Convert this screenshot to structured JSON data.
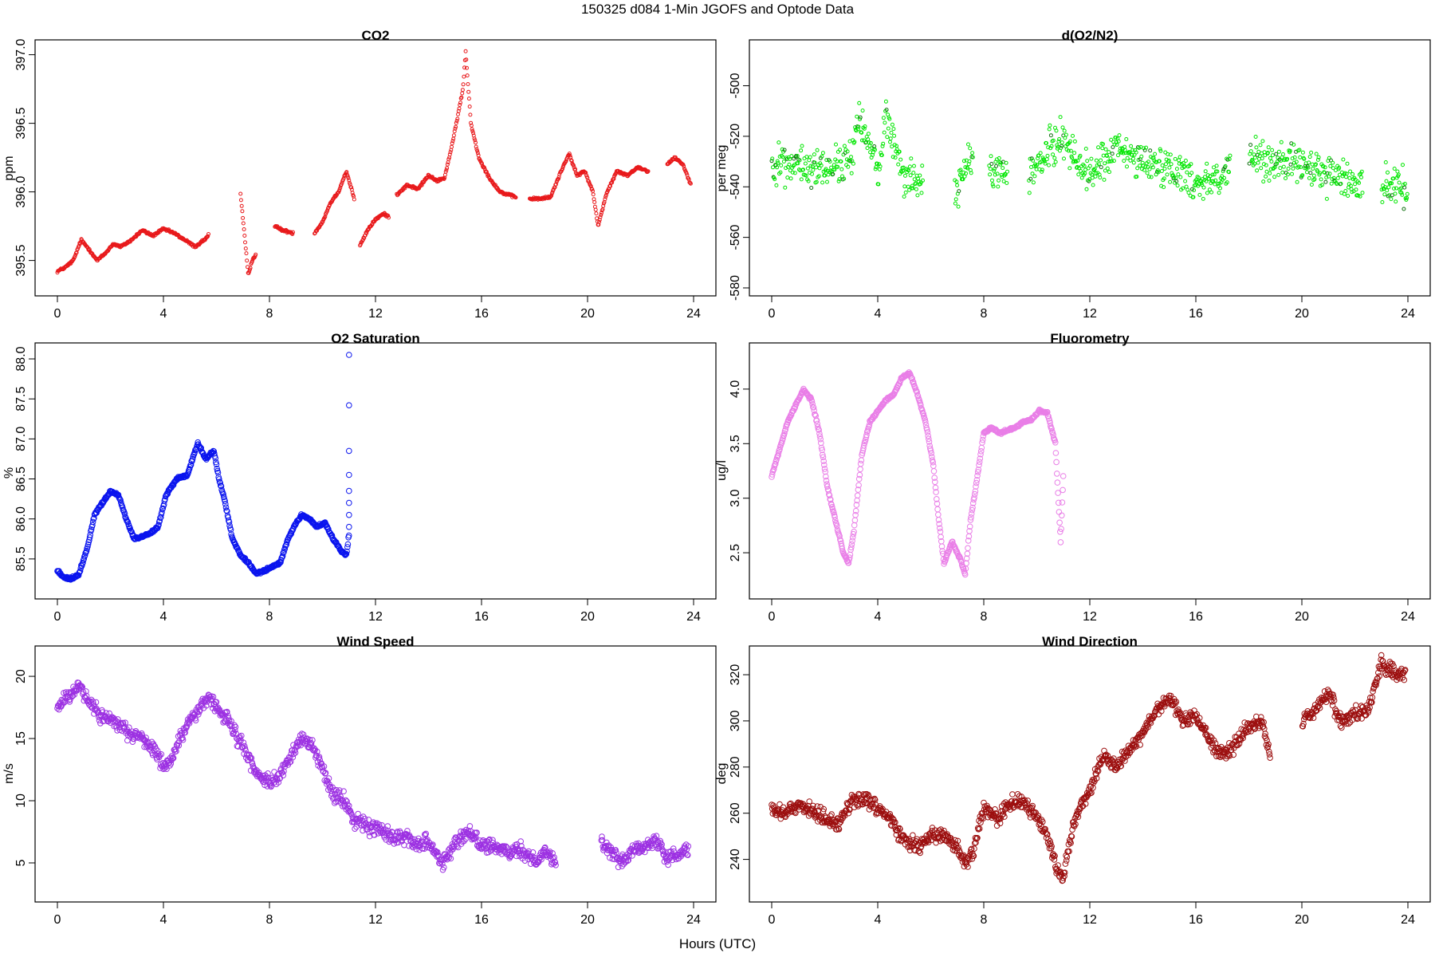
{
  "figure": {
    "suptitle": "150325   d084   1-Min  JGOFS and Optode Data",
    "xlabel": "Hours (UTC)"
  },
  "chart_data": [
    {
      "type": "scatter",
      "title": "CO2",
      "ylabel": "ppm",
      "color": "#e8191b",
      "marker_size": "small",
      "xlim": [
        0,
        24
      ],
      "xticks": [
        0,
        4,
        8,
        12,
        16,
        20,
        24
      ],
      "ylim": [
        395.3,
        397.05
      ],
      "yticks": [
        395.5,
        396.0,
        396.5,
        397.0
      ],
      "ytick_labels": [
        "395.5",
        "396.0",
        "396.5",
        "397.0"
      ],
      "gaps": [
        [
          5.7,
          6.9
        ],
        [
          7.5,
          8.2
        ],
        [
          8.9,
          9.7
        ],
        [
          11.2,
          11.4
        ],
        [
          12.5,
          12.8
        ],
        [
          17.3,
          17.8
        ],
        [
          22.3,
          23.0
        ]
      ],
      "x": [
        0,
        0.3,
        0.6,
        0.9,
        1.2,
        1.5,
        1.8,
        2.1,
        2.4,
        2.8,
        3.2,
        3.6,
        4.0,
        4.4,
        4.8,
        5.2,
        5.6,
        6.9,
        7.05,
        7.2,
        7.35,
        7.5,
        8.2,
        8.5,
        8.9,
        9.7,
        10.0,
        10.3,
        10.6,
        10.9,
        11.2,
        11.4,
        11.7,
        12.0,
        12.3,
        12.5,
        12.8,
        13.2,
        13.6,
        14.0,
        14.3,
        14.6,
        14.9,
        15.1,
        15.3,
        15.4,
        15.6,
        15.9,
        16.3,
        16.7,
        17.0,
        17.3,
        17.8,
        18.2,
        18.6,
        19.0,
        19.3,
        19.6,
        19.9,
        20.2,
        20.4,
        20.7,
        21.1,
        21.5,
        21.9,
        22.3,
        23.0,
        23.3,
        23.6,
        23.9
      ],
      "y": [
        395.42,
        395.45,
        395.5,
        395.65,
        395.58,
        395.5,
        395.55,
        395.62,
        395.6,
        395.65,
        395.72,
        395.68,
        395.73,
        395.7,
        395.65,
        395.6,
        395.66,
        396.0,
        395.7,
        395.4,
        395.5,
        395.55,
        395.75,
        395.72,
        395.7,
        395.7,
        395.78,
        395.92,
        396.0,
        396.15,
        395.95,
        395.6,
        395.72,
        395.8,
        395.84,
        395.82,
        395.98,
        396.05,
        396.02,
        396.12,
        396.08,
        396.1,
        396.35,
        396.55,
        396.75,
        397.02,
        396.5,
        396.25,
        396.1,
        396.0,
        395.98,
        395.96,
        395.95,
        395.95,
        395.96,
        396.15,
        396.28,
        396.12,
        396.15,
        396.0,
        395.75,
        395.98,
        396.15,
        396.12,
        396.18,
        396.15,
        396.2,
        396.25,
        396.2,
        396.05
      ]
    },
    {
      "type": "scatter",
      "title": "d(O2/N2)",
      "ylabel": "per meg",
      "color": "#00e600",
      "color_dark": "#107010",
      "marker_size": "small",
      "xlim": [
        0,
        24
      ],
      "xticks": [
        0,
        4,
        8,
        12,
        16,
        20,
        24
      ],
      "ylim": [
        -580,
        -485
      ],
      "yticks": [
        -500,
        -520,
        -540,
        -560,
        -580
      ],
      "ytick_labels": [
        "-500",
        "-520",
        "-540",
        "-560",
        "-580"
      ],
      "gaps": [
        [
          5.7,
          6.9
        ],
        [
          7.6,
          8.2
        ],
        [
          8.9,
          9.7
        ],
        [
          17.3,
          18.0
        ],
        [
          22.3,
          23.0
        ]
      ],
      "x": [
        0,
        1,
        2,
        3,
        3.3,
        4,
        4.3,
        5,
        5.5,
        7,
        7.5,
        8.2,
        8.8,
        9.7,
        10.5,
        11,
        11.5,
        12,
        13,
        14,
        15,
        16,
        17,
        18,
        19,
        20,
        21,
        22,
        23,
        24
      ],
      "y": [
        -530,
        -532,
        -533,
        -530,
        -510,
        -535,
        -512,
        -535,
        -538,
        -540,
        -530,
        -532,
        -535,
        -536,
        -525,
        -520,
        -530,
        -535,
        -525,
        -530,
        -532,
        -538,
        -536,
        -528,
        -530,
        -532,
        -535,
        -538,
        -540,
        -540
      ],
      "spread": 9
    },
    {
      "type": "scatter",
      "title": "O2 Saturation",
      "ylabel": "%",
      "color": "#0a14ee",
      "marker_size": "medium",
      "xlim": [
        0,
        24
      ],
      "xticks": [
        0,
        4,
        8,
        12,
        16,
        20,
        24
      ],
      "ylim": [
        85.1,
        88.1
      ],
      "yticks": [
        85.5,
        86.0,
        86.5,
        87.0,
        87.5,
        88.0
      ],
      "ytick_labels": [
        "85.5",
        "86.0",
        "86.5",
        "87.0",
        "87.5",
        "88.0"
      ],
      "x": [
        0,
        0.2,
        0.5,
        0.8,
        1.1,
        1.4,
        1.7,
        2.0,
        2.3,
        2.6,
        2.9,
        3.2,
        3.5,
        3.8,
        4.1,
        4.5,
        4.9,
        5.3,
        5.6,
        5.9,
        6.1,
        6.3,
        6.6,
        6.9,
        7.2,
        7.5,
        7.8,
        8.1,
        8.4,
        8.7,
        9.0,
        9.2,
        9.5,
        9.8,
        10.1,
        10.4,
        10.7,
        10.9,
        11.0
      ],
      "y": [
        85.35,
        85.28,
        85.25,
        85.3,
        85.6,
        86.05,
        86.2,
        86.35,
        86.3,
        86.0,
        85.75,
        85.78,
        85.82,
        85.9,
        86.3,
        86.5,
        86.55,
        86.95,
        86.75,
        86.85,
        86.5,
        86.25,
        85.75,
        85.55,
        85.45,
        85.32,
        85.35,
        85.4,
        85.45,
        85.75,
        85.95,
        86.05,
        86.0,
        85.9,
        85.95,
        85.75,
        85.6,
        85.55,
        85.8
      ],
      "outliers": {
        "x": [
          11.0,
          11.0,
          11.0,
          11.0,
          11.0,
          11.0,
          11.0,
          11.0
        ],
        "y": [
          88.05,
          87.42,
          86.85,
          86.55,
          86.35,
          86.2,
          86.05,
          85.9
        ]
      }
    },
    {
      "type": "scatter",
      "title": "Fluorometry",
      "ylabel": "ug/l",
      "color": "#e97ee7",
      "marker_size": "medium",
      "xlim": [
        0,
        24
      ],
      "xticks": [
        0,
        4,
        8,
        12,
        16,
        20,
        24
      ],
      "ylim": [
        2.15,
        4.35
      ],
      "yticks": [
        2.5,
        3.0,
        3.5,
        4.0
      ],
      "ytick_labels": [
        "2.5",
        "3.0",
        "3.5",
        "4.0"
      ],
      "x": [
        0,
        0.3,
        0.6,
        0.9,
        1.2,
        1.5,
        1.8,
        2.1,
        2.4,
        2.7,
        2.9,
        3.1,
        3.4,
        3.7,
        4.0,
        4.3,
        4.6,
        4.9,
        5.2,
        5.5,
        5.8,
        6.1,
        6.3,
        6.5,
        6.8,
        7.1,
        7.3,
        7.5,
        7.7,
        8.0,
        8.3,
        8.6,
        8.9,
        9.2,
        9.5,
        9.8,
        10.1,
        10.4,
        10.7,
        10.9,
        11.0
      ],
      "y": [
        3.2,
        3.45,
        3.7,
        3.85,
        4.0,
        3.9,
        3.6,
        3.1,
        2.8,
        2.5,
        2.4,
        2.7,
        3.4,
        3.7,
        3.8,
        3.9,
        3.95,
        4.1,
        4.15,
        3.95,
        3.7,
        3.3,
        2.8,
        2.4,
        2.6,
        2.45,
        2.3,
        2.8,
        3.1,
        3.6,
        3.65,
        3.6,
        3.62,
        3.65,
        3.7,
        3.72,
        3.8,
        3.78,
        3.5,
        2.6,
        3.2
      ]
    },
    {
      "type": "scatter",
      "title": "Wind Speed",
      "ylabel": "m/s",
      "color": "#9c31e2",
      "marker_size": "medium",
      "xlim": [
        0,
        24
      ],
      "xticks": [
        0,
        4,
        8,
        12,
        16,
        20,
        24
      ],
      "ylim": [
        2.5,
        21.8
      ],
      "yticks": [
        5,
        10,
        15,
        20
      ],
      "ytick_labels": [
        "5",
        "10",
        "15",
        "20"
      ],
      "gaps": [
        [
          18.8,
          20.5
        ]
      ],
      "x": [
        0,
        0.4,
        0.8,
        1.2,
        1.6,
        2.0,
        2.4,
        2.8,
        3.2,
        3.6,
        4.0,
        4.3,
        4.6,
        5.0,
        5.4,
        5.7,
        6.0,
        6.4,
        6.8,
        7.2,
        7.6,
        8.0,
        8.4,
        8.8,
        9.2,
        9.6,
        10.0,
        10.4,
        10.8,
        11.2,
        11.6,
        12.0,
        12.4,
        12.8,
        13.2,
        13.6,
        14.0,
        14.5,
        15.0,
        15.5,
        16.0,
        16.5,
        17.0,
        17.5,
        18.0,
        18.4,
        18.8,
        20.5,
        21.0,
        21.4,
        21.8,
        22.2,
        22.6,
        23.0,
        23.4,
        23.8
      ],
      "y": [
        17.5,
        18.5,
        19.2,
        18.0,
        17.0,
        16.5,
        16.0,
        15.3,
        15.0,
        14.0,
        12.8,
        13.2,
        15.0,
        16.5,
        17.5,
        18.5,
        17.5,
        16.5,
        15.0,
        13.5,
        12.0,
        11.5,
        12.0,
        13.5,
        15.0,
        14.5,
        12.5,
        10.5,
        10.0,
        8.5,
        8.0,
        7.8,
        7.5,
        7.0,
        7.2,
        6.5,
        6.8,
        5.0,
        6.5,
        7.5,
        6.5,
        6.2,
        5.8,
        6.0,
        5.2,
        6.0,
        5.0,
        6.8,
        5.5,
        5.2,
        6.5,
        6.2,
        6.8,
        5.5,
        5.8,
        6.2
      ],
      "spread": 0.7
    },
    {
      "type": "scatter",
      "title": "Wind Direction",
      "ylabel": "deg",
      "color": "#9c0f0f",
      "marker_size": "medium",
      "xlim": [
        0,
        24
      ],
      "xticks": [
        0,
        4,
        8,
        12,
        16,
        20,
        24
      ],
      "ylim": [
        225,
        329
      ],
      "yticks": [
        240,
        260,
        280,
        300,
        320
      ],
      "ytick_labels": [
        "240",
        "260",
        "280",
        "300",
        "320"
      ],
      "gaps": [
        [
          18.8,
          20.0
        ]
      ],
      "x": [
        0,
        0.5,
        1.0,
        1.5,
        2.0,
        2.5,
        3.0,
        3.5,
        4.0,
        4.5,
        5.0,
        5.5,
        6.0,
        6.5,
        7.0,
        7.3,
        7.6,
        8.0,
        8.5,
        9.0,
        9.5,
        10.0,
        10.4,
        10.7,
        11.0,
        11.3,
        11.6,
        12.0,
        12.5,
        13.0,
        13.5,
        14.0,
        14.5,
        15.0,
        15.5,
        16.0,
        16.5,
        17.0,
        17.5,
        18.0,
        18.5,
        18.8,
        20.0,
        20.5,
        21.0,
        21.5,
        22.0,
        22.5,
        23.0,
        23.5,
        23.9
      ],
      "y": [
        262,
        260,
        263,
        262,
        258,
        255,
        265,
        266,
        262,
        257,
        248,
        245,
        250,
        250,
        245,
        238,
        243,
        262,
        258,
        264,
        265,
        258,
        250,
        238,
        232,
        252,
        262,
        270,
        285,
        280,
        288,
        295,
        305,
        310,
        300,
        303,
        292,
        285,
        290,
        298,
        300,
        285,
        300,
        305,
        312,
        300,
        303,
        305,
        325,
        320,
        320
      ],
      "spread": 4
    }
  ]
}
